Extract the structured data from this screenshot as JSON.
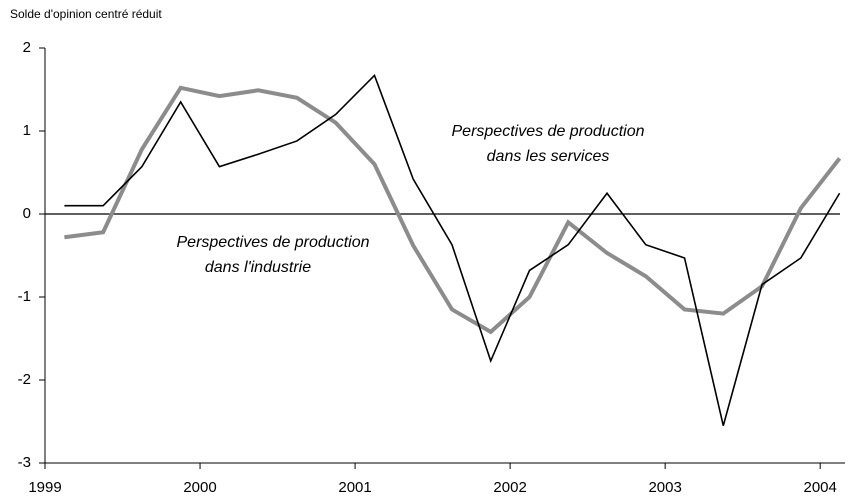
{
  "chart_data": {
    "type": "line",
    "ylabel": "Solde d'opinion centré réduit",
    "x": [
      1999.125,
      1999.375,
      1999.625,
      1999.875,
      2000.125,
      2000.375,
      2000.625,
      2000.875,
      2001.125,
      2001.375,
      2001.625,
      2001.875,
      2002.125,
      2002.375,
      2002.625,
      2002.875,
      2003.125,
      2003.375,
      2003.625,
      2003.875,
      2004.125
    ],
    "series": [
      {
        "color": "#000000",
        "values": [
          0.1,
          0.1,
          0.57,
          1.35,
          0.57,
          0.72,
          0.88,
          1.2,
          1.67,
          0.42,
          -0.37,
          -1.77,
          -0.68,
          -0.37,
          0.25,
          -0.37,
          -0.53,
          -2.55,
          -0.85,
          -0.53,
          0.25
        ]
      },
      {
        "color": "#8c8c8c",
        "values": [
          -0.28,
          -0.22,
          0.78,
          1.52,
          1.42,
          1.49,
          1.4,
          1.1,
          0.6,
          -0.38,
          -1.15,
          -1.42,
          -1.0,
          -0.1,
          -0.47,
          -0.75,
          -1.15,
          -1.2,
          -0.87,
          0.07,
          0.67
        ]
      }
    ],
    "annotations": [
      {
        "lines": [
          "Perspectives de production",
          "dans les services"
        ]
      },
      {
        "lines": [
          "Perspectives de production",
          "dans l'industrie"
        ]
      }
    ],
    "xlim": [
      1999,
      2004.16
    ],
    "xticks": [
      1999,
      2000,
      2001,
      2002,
      2003,
      2004
    ],
    "ylim": [
      -3,
      2
    ],
    "yticks": [
      -3,
      -2,
      -1,
      0,
      1,
      2
    ]
  }
}
